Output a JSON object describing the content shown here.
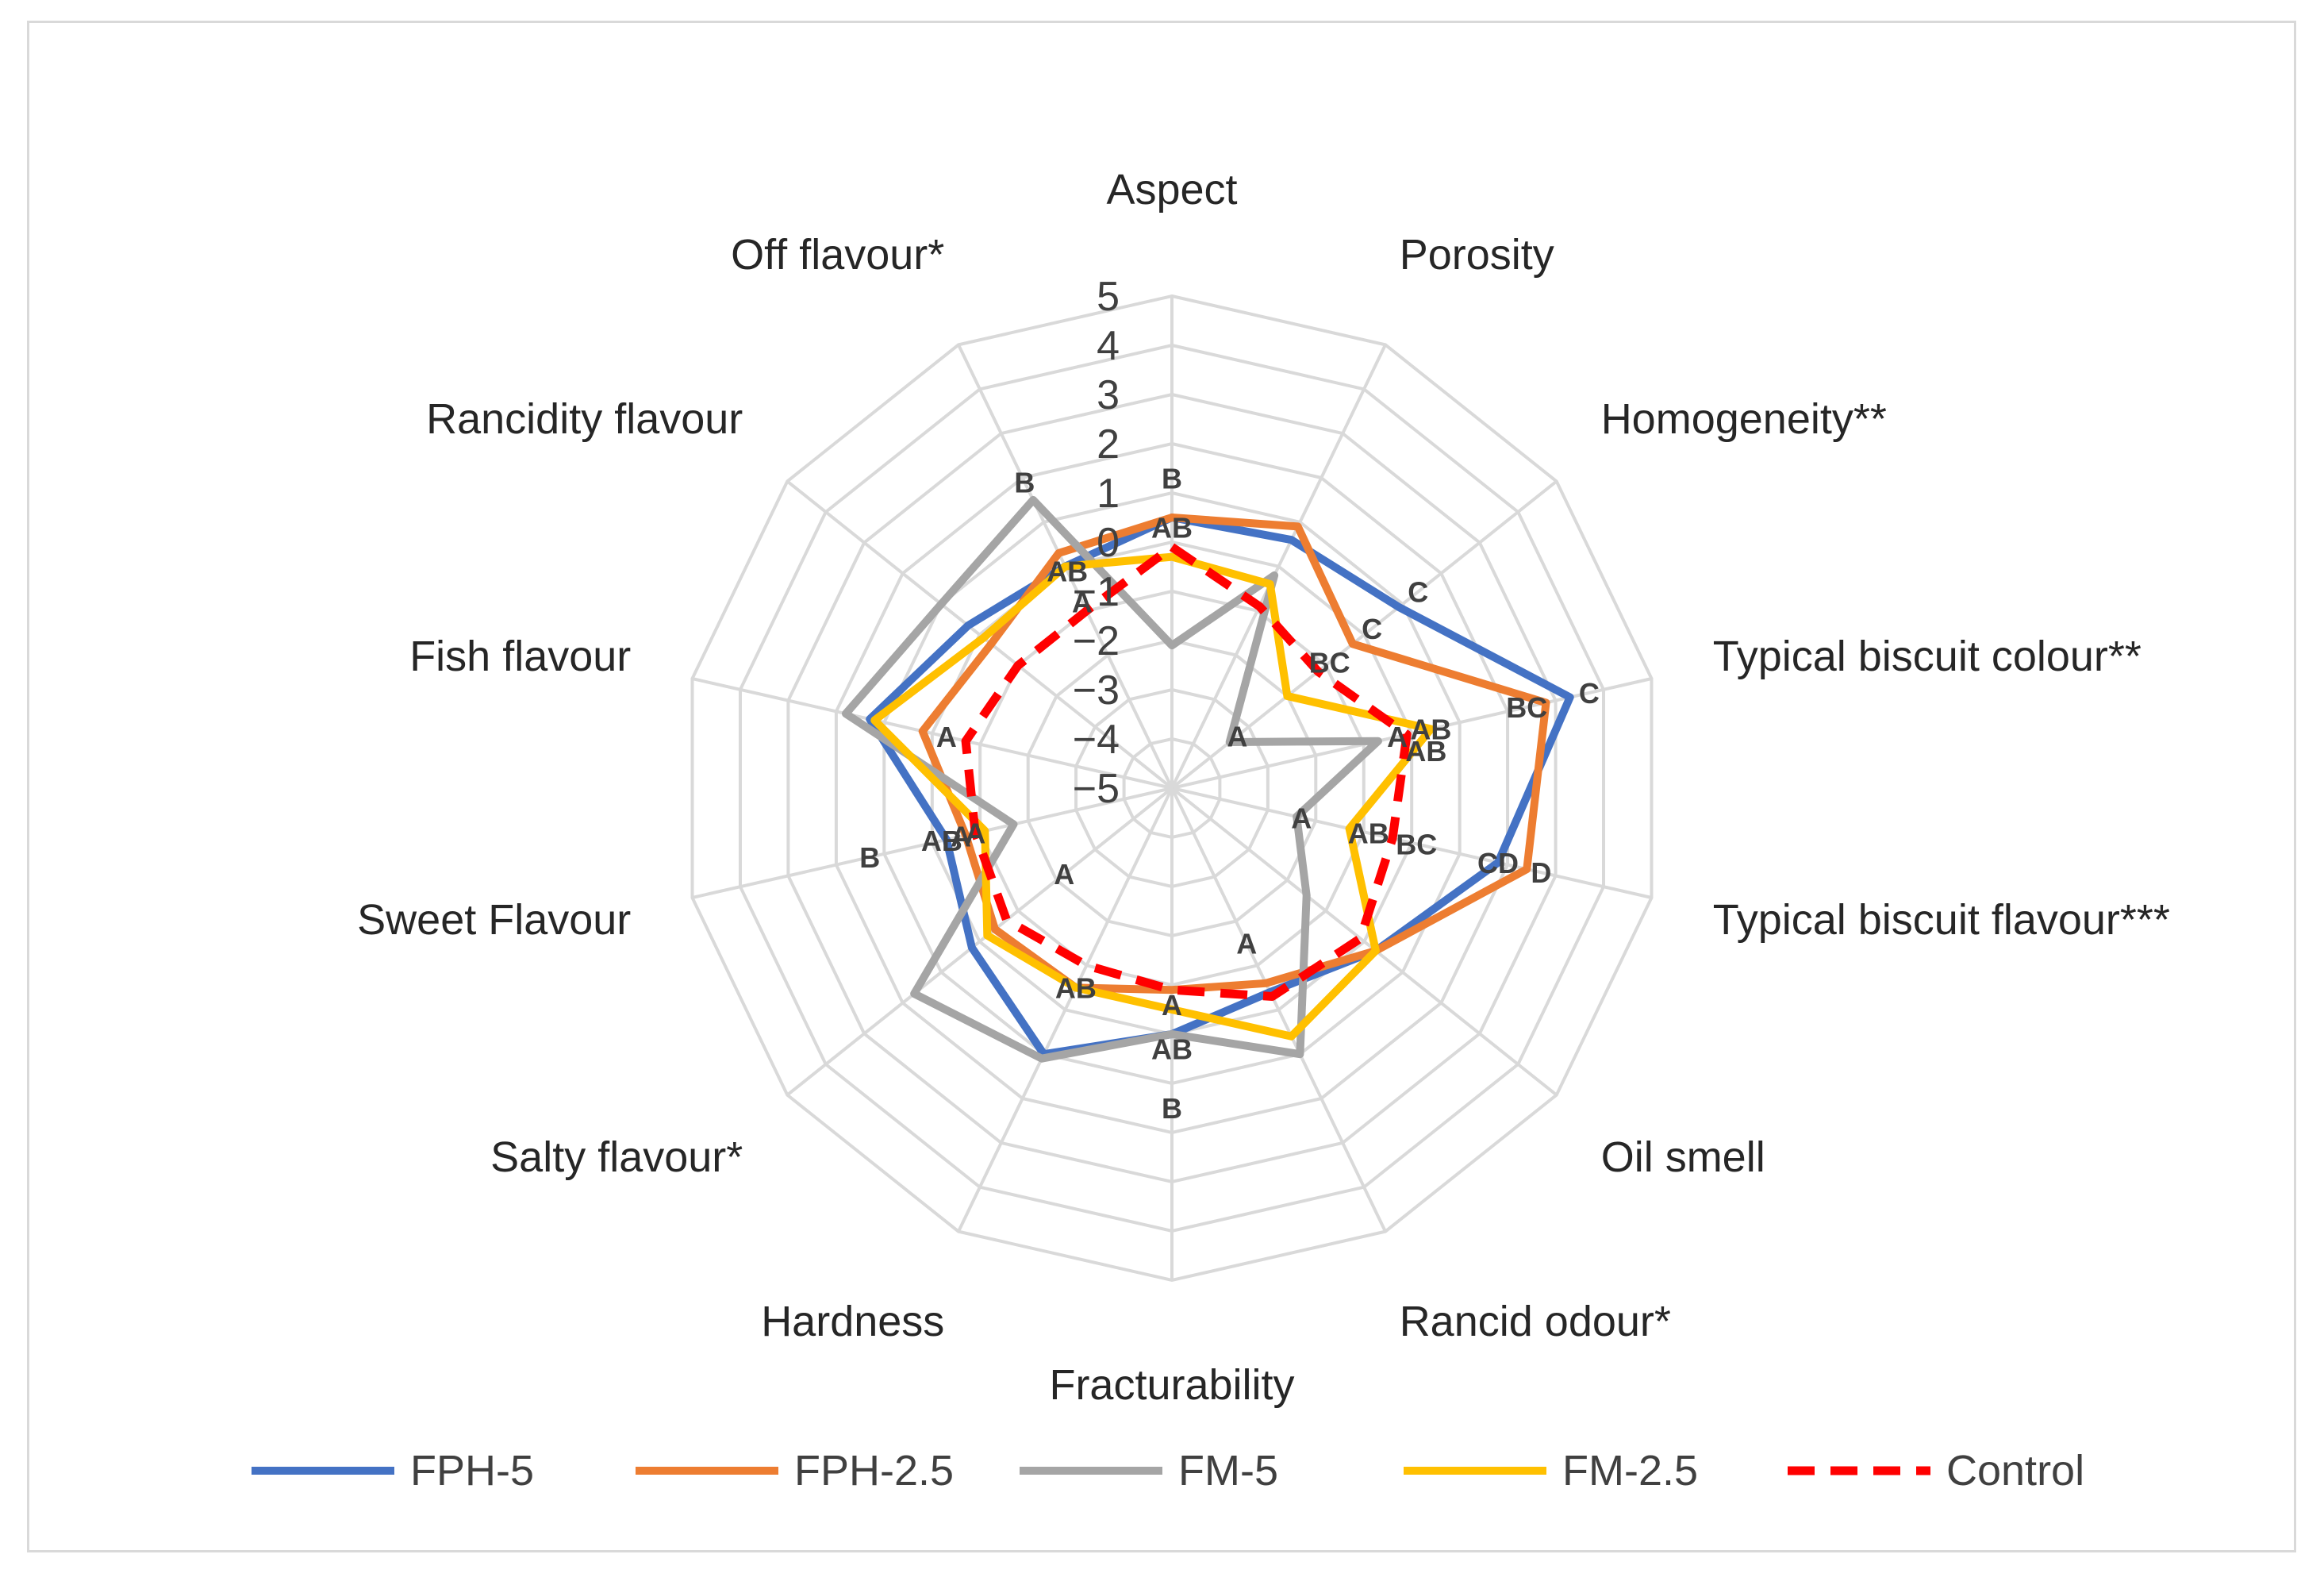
{
  "chart_data": {
    "type": "radar",
    "axes": [
      "Aspect",
      "Porosity",
      "Homogeneity**",
      "Typical biscuit colour**",
      "Typical biscuit flavour***",
      "Oil smell",
      "Rancid odour*",
      "Fracturability",
      "Hardness",
      "Salty flavour*",
      "Sweet Flavour",
      "Fish flavour",
      "Rancidity flavour",
      "Off flavour*"
    ],
    "range": [
      -5,
      5
    ],
    "ticks": [
      "5",
      "4",
      "3",
      "2",
      "1",
      "0",
      "−1",
      "−2",
      "−3",
      "−4",
      "−5"
    ],
    "tick_values": [
      5,
      4,
      3,
      2,
      1,
      0,
      -1,
      -2,
      -3,
      -4,
      -5
    ],
    "grid": true,
    "legend_position": "bottom",
    "series": [
      {
        "name": "FPH-5",
        "color": "#4472c4",
        "dashed": false,
        "values": [
          0.5,
          0.6,
          0.9,
          3.3,
          1.8,
          0.3,
          -0.4,
          0.0,
          1.0,
          0.2,
          -0.3,
          1.3,
          0.3,
          0.0
        ]
      },
      {
        "name": "FPH-2.5",
        "color": "#ed7d31",
        "dashed": false,
        "values": [
          0.5,
          0.9,
          -0.3,
          2.8,
          2.4,
          0.3,
          -0.6,
          -0.9,
          -0.5,
          -0.4,
          -0.7,
          0.2,
          -0.3,
          0.3
        ]
      },
      {
        "name": "FM-5",
        "color": "#a5a5a5",
        "dashed": false,
        "values": [
          -2.1,
          -0.2,
          -3.5,
          -0.7,
          -2.4,
          -1.5,
          1.0,
          0.0,
          1.1,
          1.7,
          -1.7,
          1.8,
          1.0,
          1.5
        ]
      },
      {
        "name": "FM-2.5",
        "color": "#ffc000",
        "dashed": false,
        "values": [
          -0.3,
          -0.4,
          -2.0,
          0.4,
          -1.3,
          0.3,
          0.6,
          -0.5,
          -0.5,
          -0.2,
          -1.1,
          1.2,
          -0.1,
          0.0
        ]
      },
      {
        "name": "Control",
        "color": "#ff0000",
        "dashed": true,
        "values": [
          -0.1,
          -0.9,
          -1.2,
          -0.1,
          -0.4,
          -0.1,
          -0.3,
          -0.9,
          -1.0,
          -0.7,
          -0.9,
          -0.7,
          -1.0,
          -1.0
        ]
      }
    ],
    "annotations": [
      {
        "text": "C",
        "axis": 2,
        "value": 1.4
      },
      {
        "text": "C",
        "axis": 2,
        "value": 0.2
      },
      {
        "text": "BC",
        "axis": 2,
        "value": -0.9
      },
      {
        "text": "A",
        "axis": 2,
        "value": -3.3
      },
      {
        "text": "C",
        "axis": 3,
        "value": 3.7
      },
      {
        "text": "BC",
        "axis": 3,
        "value": 2.4
      },
      {
        "text": "AB",
        "axis": 3,
        "value": 0.4
      },
      {
        "text": "A",
        "axis": 3,
        "value": -0.3
      },
      {
        "text": "AB",
        "axis": 3,
        "value": 0.3,
        "dy": 26
      },
      {
        "text": "D",
        "axis": 4,
        "value": 2.7
      },
      {
        "text": "CD",
        "axis": 4,
        "value": 1.8
      },
      {
        "text": "BC",
        "axis": 4,
        "value": 0.1
      },
      {
        "text": "AB",
        "axis": 4,
        "value": -0.9
      },
      {
        "text": "A",
        "axis": 4,
        "value": -2.3
      },
      {
        "text": "A",
        "axis": 6,
        "value": -1.5
      },
      {
        "text": "AB",
        "axis": 7,
        "value": 0.3
      },
      {
        "text": "B",
        "axis": 7,
        "value": 1.5
      },
      {
        "text": "A",
        "axis": 7,
        "value": -0.6
      },
      {
        "text": "AB",
        "axis": 8,
        "value": -0.5
      },
      {
        "text": "A",
        "axis": 9,
        "value": -2.2
      },
      {
        "text": "B",
        "axis": 10,
        "value": 1.3
      },
      {
        "text": "AB",
        "axis": 10,
        "value": -0.2
      },
      {
        "text": "A",
        "axis": 10,
        "value": -0.6
      },
      {
        "text": "A",
        "axis": 10,
        "value": -0.9
      },
      {
        "text": "A",
        "axis": 11,
        "value": -0.3
      },
      {
        "text": "B",
        "axis": 13,
        "value": 1.9
      },
      {
        "text": "B",
        "axis": 0,
        "value": 1.3
      },
      {
        "text": "AB",
        "axis": 0,
        "value": 0.3
      },
      {
        "text": "AB",
        "axis": 13,
        "value": -0.1
      },
      {
        "text": "A",
        "axis": 13,
        "value": -0.8
      }
    ]
  }
}
